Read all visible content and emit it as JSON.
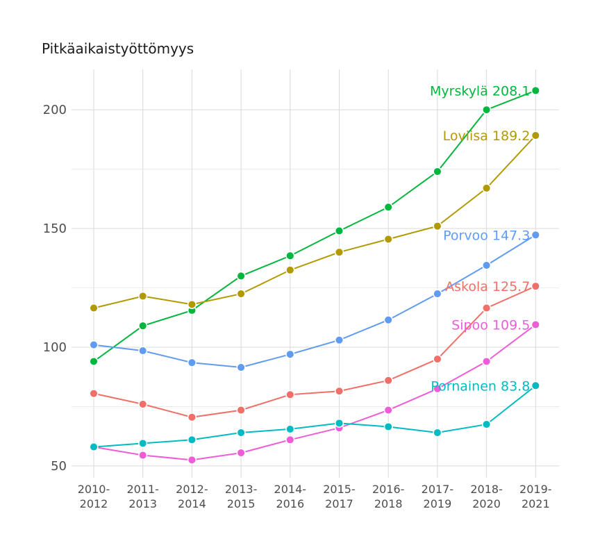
{
  "chart_data": {
    "type": "line",
    "title": "Pitkäaikaistyöttömyys",
    "xlabel": "",
    "ylabel": "",
    "x": [
      "2010-\n2012",
      "2011-\n2013",
      "2012-\n2014",
      "2013-\n2015",
      "2014-\n2016",
      "2015-\n2017",
      "2016-\n2018",
      "2017-\n2019",
      "2018-\n2020",
      "2019-\n2021"
    ],
    "ylim": [
      45,
      217
    ],
    "yticks": [
      50,
      100,
      150,
      200
    ],
    "grid": true,
    "legend": "none",
    "series": [
      {
        "name": "Myrskylä",
        "end_label": "Myrskylä 208.1",
        "color": "#00b63e",
        "values": [
          94.0,
          109.0,
          115.5,
          130.0,
          138.5,
          149.0,
          159.0,
          174.0,
          200.0,
          208.1
        ]
      },
      {
        "name": "Loviisa",
        "end_label": "Loviisa 189.2",
        "color": "#b19a00",
        "values": [
          116.5,
          121.5,
          118.0,
          122.5,
          132.5,
          140.0,
          145.5,
          151.0,
          167.0,
          189.2
        ]
      },
      {
        "name": "Porvoo",
        "end_label": "Porvoo 147.3",
        "color": "#5f9bf0",
        "values": [
          101.0,
          98.5,
          93.5,
          91.5,
          97.0,
          103.0,
          111.5,
          122.5,
          134.5,
          147.3
        ]
      },
      {
        "name": "Askola",
        "end_label": "Askola 125.7",
        "color": "#f07069",
        "values": [
          80.5,
          76.0,
          70.5,
          73.5,
          80.0,
          81.5,
          86.0,
          95.0,
          116.5,
          125.7
        ]
      },
      {
        "name": "Sipoo",
        "end_label": "Sipoo 109.5",
        "color": "#ee5cd8",
        "values": [
          58.0,
          54.5,
          52.5,
          55.5,
          61.0,
          66.0,
          73.5,
          82.5,
          94.0,
          109.5
        ]
      },
      {
        "name": "Pornainen",
        "end_label": "Pornainen 83.8",
        "color": "#00bcc2",
        "values": [
          58.0,
          59.5,
          61.0,
          64.0,
          65.5,
          68.0,
          66.5,
          64.0,
          67.5,
          83.8
        ]
      }
    ]
  }
}
